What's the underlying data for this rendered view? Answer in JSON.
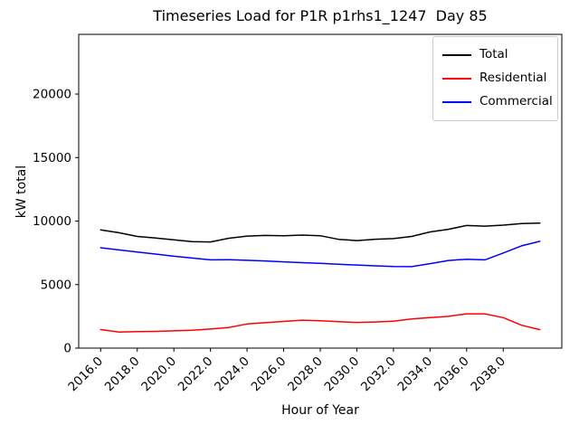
{
  "figure": {
    "title": "Timeseries Load for P1R p1rhs1_1247  Day 85",
    "xlabel": "Hour of Year",
    "ylabel": "kW total"
  },
  "chart_data": {
    "type": "line",
    "title": "Timeseries Load for P1R p1rhs1_1247  Day 85",
    "xlabel": "Hour of Year",
    "ylabel": "kW total",
    "grid": false,
    "legend_position": "upper right",
    "xlim": [
      2014.8,
      2041.2
    ],
    "ylim": [
      0,
      24700
    ],
    "xticks": {
      "values": [
        2016,
        2018,
        2020,
        2022,
        2024,
        2026,
        2028,
        2030,
        2032,
        2034,
        2036,
        2038
      ],
      "labels": [
        "2016.0",
        "2018.0",
        "2020.0",
        "2022.0",
        "2024.0",
        "2026.0",
        "2028.0",
        "2030.0",
        "2032.0",
        "2034.0",
        "2036.0",
        "2038.0"
      ],
      "rotation": 45
    },
    "yticks": {
      "values": [
        0,
        5000,
        10000,
        15000,
        20000
      ],
      "labels": [
        "0",
        "5000",
        "10000",
        "15000",
        "20000"
      ]
    },
    "x": [
      2016,
      2017,
      2018,
      2019,
      2020,
      2021,
      2022,
      2023,
      2024,
      2025,
      2026,
      2027,
      2028,
      2029,
      2030,
      2031,
      2032,
      2033,
      2034,
      2035,
      2036,
      2037,
      2038,
      2039,
      2040
    ],
    "series": [
      {
        "name": "Total",
        "color": "#000000",
        "values": [
          9310,
          9080,
          8790,
          8670,
          8530,
          8380,
          8360,
          8650,
          8820,
          8870,
          8840,
          8900,
          8850,
          8560,
          8460,
          8570,
          8620,
          8790,
          9150,
          9350,
          9650,
          9600,
          9680,
          9800,
          9840
        ]
      },
      {
        "name": "Residential",
        "color": "#ff0000",
        "values": [
          1460,
          1270,
          1300,
          1320,
          1360,
          1410,
          1500,
          1620,
          1900,
          2000,
          2100,
          2200,
          2150,
          2080,
          2020,
          2060,
          2120,
          2300,
          2400,
          2500,
          2700,
          2700,
          2400,
          1800,
          1450
        ]
      },
      {
        "name": "Commercial",
        "color": "#0000ff",
        "values": [
          7900,
          7730,
          7560,
          7400,
          7230,
          7090,
          6950,
          6960,
          6910,
          6860,
          6790,
          6730,
          6670,
          6600,
          6540,
          6480,
          6430,
          6410,
          6650,
          6900,
          7000,
          6950,
          7490,
          8050,
          8410
        ]
      }
    ]
  }
}
